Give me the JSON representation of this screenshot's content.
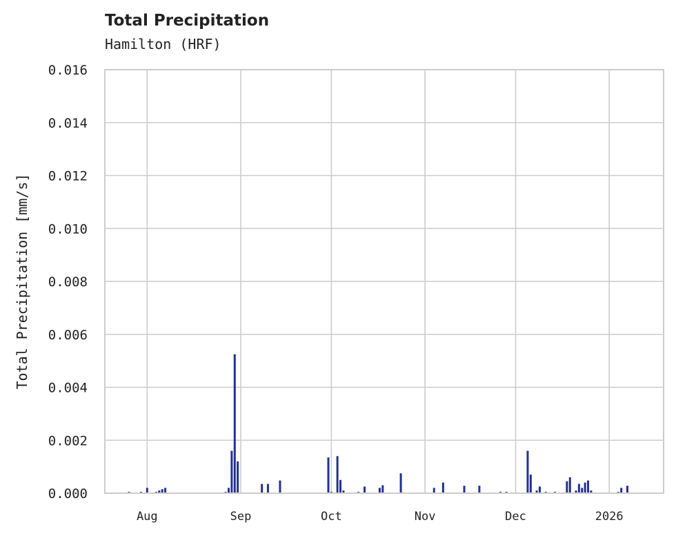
{
  "header": {
    "title": "Total Precipitation",
    "subtitle": "Hamilton (HRF)"
  },
  "axes": {
    "ylabel": "Total Precipitation [mm/s]",
    "yticks": [
      "0.000",
      "0.002",
      "0.004",
      "0.006",
      "0.008",
      "0.010",
      "0.012",
      "0.014",
      "0.016"
    ],
    "xticks": [
      "Aug",
      "Sep",
      "Oct",
      "Nov",
      "Dec",
      "2026"
    ]
  },
  "colors": {
    "bar": "#22318f",
    "grid": "#cccccc",
    "text": "#222222"
  },
  "chart_data": {
    "type": "bar",
    "title": "Total Precipitation",
    "subtitle": "Hamilton (HRF)",
    "xlabel": "",
    "ylabel": "Total Precipitation [mm/s]",
    "ylim": [
      0,
      0.016
    ],
    "xlim": [
      "2025-07-18",
      "2026-01-19"
    ],
    "grid": true,
    "legend": null,
    "x_tick_labels": [
      "Aug",
      "Sep",
      "Oct",
      "Nov",
      "Dec",
      "2026"
    ],
    "y_tick_labels": [
      "0.000",
      "0.002",
      "0.004",
      "0.006",
      "0.008",
      "0.010",
      "0.012",
      "0.014",
      "0.016"
    ],
    "series": [
      {
        "name": "Total Precipitation",
        "points": [
          {
            "date": "2025-07-26",
            "value": 5e-05
          },
          {
            "date": "2025-07-30",
            "value": 5e-05
          },
          {
            "date": "2025-08-01",
            "value": 0.0002
          },
          {
            "date": "2025-08-04",
            "value": 5e-05
          },
          {
            "date": "2025-08-05",
            "value": 0.0001
          },
          {
            "date": "2025-08-06",
            "value": 0.00015
          },
          {
            "date": "2025-08-07",
            "value": 0.0002
          },
          {
            "date": "2025-08-27",
            "value": 5e-05
          },
          {
            "date": "2025-08-28",
            "value": 0.0002
          },
          {
            "date": "2025-08-29",
            "value": 0.0016
          },
          {
            "date": "2025-08-30",
            "value": 0.00525
          },
          {
            "date": "2025-08-31",
            "value": 0.0012
          },
          {
            "date": "2025-09-08",
            "value": 0.00035
          },
          {
            "date": "2025-09-10",
            "value": 0.00035
          },
          {
            "date": "2025-09-14",
            "value": 0.00048
          },
          {
            "date": "2025-09-30",
            "value": 0.00135
          },
          {
            "date": "2025-10-01",
            "value": 5e-05
          },
          {
            "date": "2025-10-03",
            "value": 0.0014
          },
          {
            "date": "2025-10-04",
            "value": 0.0005
          },
          {
            "date": "2025-10-05",
            "value": 0.0001
          },
          {
            "date": "2025-10-10",
            "value": 5e-05
          },
          {
            "date": "2025-10-12",
            "value": 0.00025
          },
          {
            "date": "2025-10-17",
            "value": 0.0002
          },
          {
            "date": "2025-10-18",
            "value": 0.0003
          },
          {
            "date": "2025-10-24",
            "value": 0.00075
          },
          {
            "date": "2025-11-04",
            "value": 0.0002
          },
          {
            "date": "2025-11-07",
            "value": 0.0004
          },
          {
            "date": "2025-11-14",
            "value": 0.00028
          },
          {
            "date": "2025-11-19",
            "value": 0.00028
          },
          {
            "date": "2025-11-26",
            "value": 5e-05
          },
          {
            "date": "2025-11-28",
            "value": 5e-05
          },
          {
            "date": "2025-12-05",
            "value": 0.0016
          },
          {
            "date": "2025-12-06",
            "value": 0.0007
          },
          {
            "date": "2025-12-08",
            "value": 0.0001
          },
          {
            "date": "2025-12-09",
            "value": 0.00025
          },
          {
            "date": "2025-12-11",
            "value": 5e-05
          },
          {
            "date": "2025-12-14",
            "value": 5e-05
          },
          {
            "date": "2025-12-18",
            "value": 0.00045
          },
          {
            "date": "2025-12-19",
            "value": 0.0006
          },
          {
            "date": "2025-12-21",
            "value": 0.0001
          },
          {
            "date": "2025-12-22",
            "value": 0.00035
          },
          {
            "date": "2025-12-23",
            "value": 0.0002
          },
          {
            "date": "2025-12-24",
            "value": 0.0004
          },
          {
            "date": "2025-12-25",
            "value": 0.00048
          },
          {
            "date": "2025-12-26",
            "value": 0.0001
          },
          {
            "date": "2026-01-04",
            "value": 5e-05
          },
          {
            "date": "2026-01-05",
            "value": 0.0002
          },
          {
            "date": "2026-01-07",
            "value": 0.00028
          }
        ]
      }
    ]
  }
}
